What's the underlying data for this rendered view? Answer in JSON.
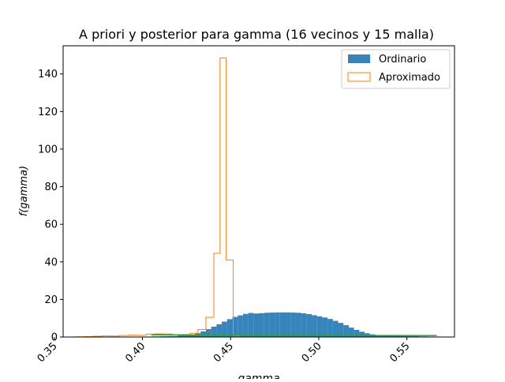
{
  "chart_data": {
    "type": "histogram",
    "title": "A priori y posterior para gamma (16 vecinos y 15 malla)",
    "xlabel": "gamma",
    "ylabel": "f(gamma)",
    "xlim": [
      0.355,
      0.577
    ],
    "ylim": [
      0,
      155
    ],
    "x_ticks": [
      "0.35",
      "0.40",
      "0.45",
      "0.50",
      "0.55"
    ],
    "y_ticks": [
      "0",
      "20",
      "40",
      "60",
      "80",
      "100",
      "120",
      "140"
    ],
    "legend_position": "top-right",
    "colors": {
      "ordinario": "#3584bc",
      "aproximado": "#ff7f0e",
      "prior": "#2ca02c",
      "axis": "#000000"
    },
    "legend": [
      {
        "label": "Ordinario",
        "style": "filled"
      },
      {
        "label": "Aproximado",
        "style": "step"
      }
    ],
    "series": [
      {
        "name": "Ordinario",
        "style": "filled",
        "bin_edges": [
          0.405,
          0.41,
          0.415,
          0.42,
          0.425,
          0.43,
          0.433,
          0.436,
          0.439,
          0.442,
          0.445,
          0.448,
          0.451,
          0.454,
          0.457,
          0.46,
          0.463,
          0.466,
          0.469,
          0.472,
          0.475,
          0.478,
          0.481,
          0.484,
          0.487,
          0.49,
          0.493,
          0.496,
          0.499,
          0.502,
          0.505,
          0.508,
          0.511,
          0.514,
          0.517,
          0.52,
          0.523,
          0.526,
          0.529,
          0.532,
          0.537,
          0.542,
          0.547,
          0.552,
          0.557,
          0.562,
          0.567
        ],
        "values": [
          0.3,
          0.4,
          0.5,
          0.8,
          1.2,
          2.0,
          3.0,
          4.2,
          5.5,
          6.8,
          8.2,
          9.5,
          10.7,
          11.5,
          12.3,
          12.8,
          12.5,
          12.7,
          12.9,
          13.0,
          13.1,
          13.1,
          13.1,
          13.0,
          12.9,
          12.6,
          12.2,
          11.6,
          11.0,
          10.4,
          9.6,
          8.6,
          7.5,
          6.3,
          5.0,
          3.8,
          2.8,
          2.0,
          1.4,
          1.0,
          0.8,
          0.6,
          0.5,
          0.4,
          0.3,
          0.2
        ]
      },
      {
        "name": "Aproximado",
        "style": "step",
        "bin_edges": [
          0.362,
          0.367,
          0.372,
          0.377,
          0.382,
          0.387,
          0.392,
          0.397,
          0.402,
          0.407,
          0.412,
          0.417,
          0.422,
          0.427,
          0.4315,
          0.436,
          0.4405,
          0.444,
          0.4475,
          0.4515,
          0.455,
          0.4585
        ],
        "values": [
          0.1,
          0.2,
          0.4,
          0.6,
          0.5,
          0.8,
          1.0,
          0.9,
          1.5,
          1.7,
          1.6,
          1.2,
          1.3,
          2.0,
          4.0,
          10.5,
          44.5,
          148.5,
          41.0,
          0.5,
          0.0
        ]
      },
      {
        "name": "",
        "style": "line",
        "x": [
          0.405,
          0.42,
          0.435,
          0.45,
          0.465,
          0.48,
          0.495,
          0.51,
          0.525,
          0.54,
          0.555,
          0.567
        ],
        "values": [
          1.2,
          1.1,
          1.1,
          1.0,
          1.0,
          0.9,
          0.9,
          0.9,
          0.8,
          0.8,
          0.8,
          0.8
        ]
      }
    ]
  }
}
